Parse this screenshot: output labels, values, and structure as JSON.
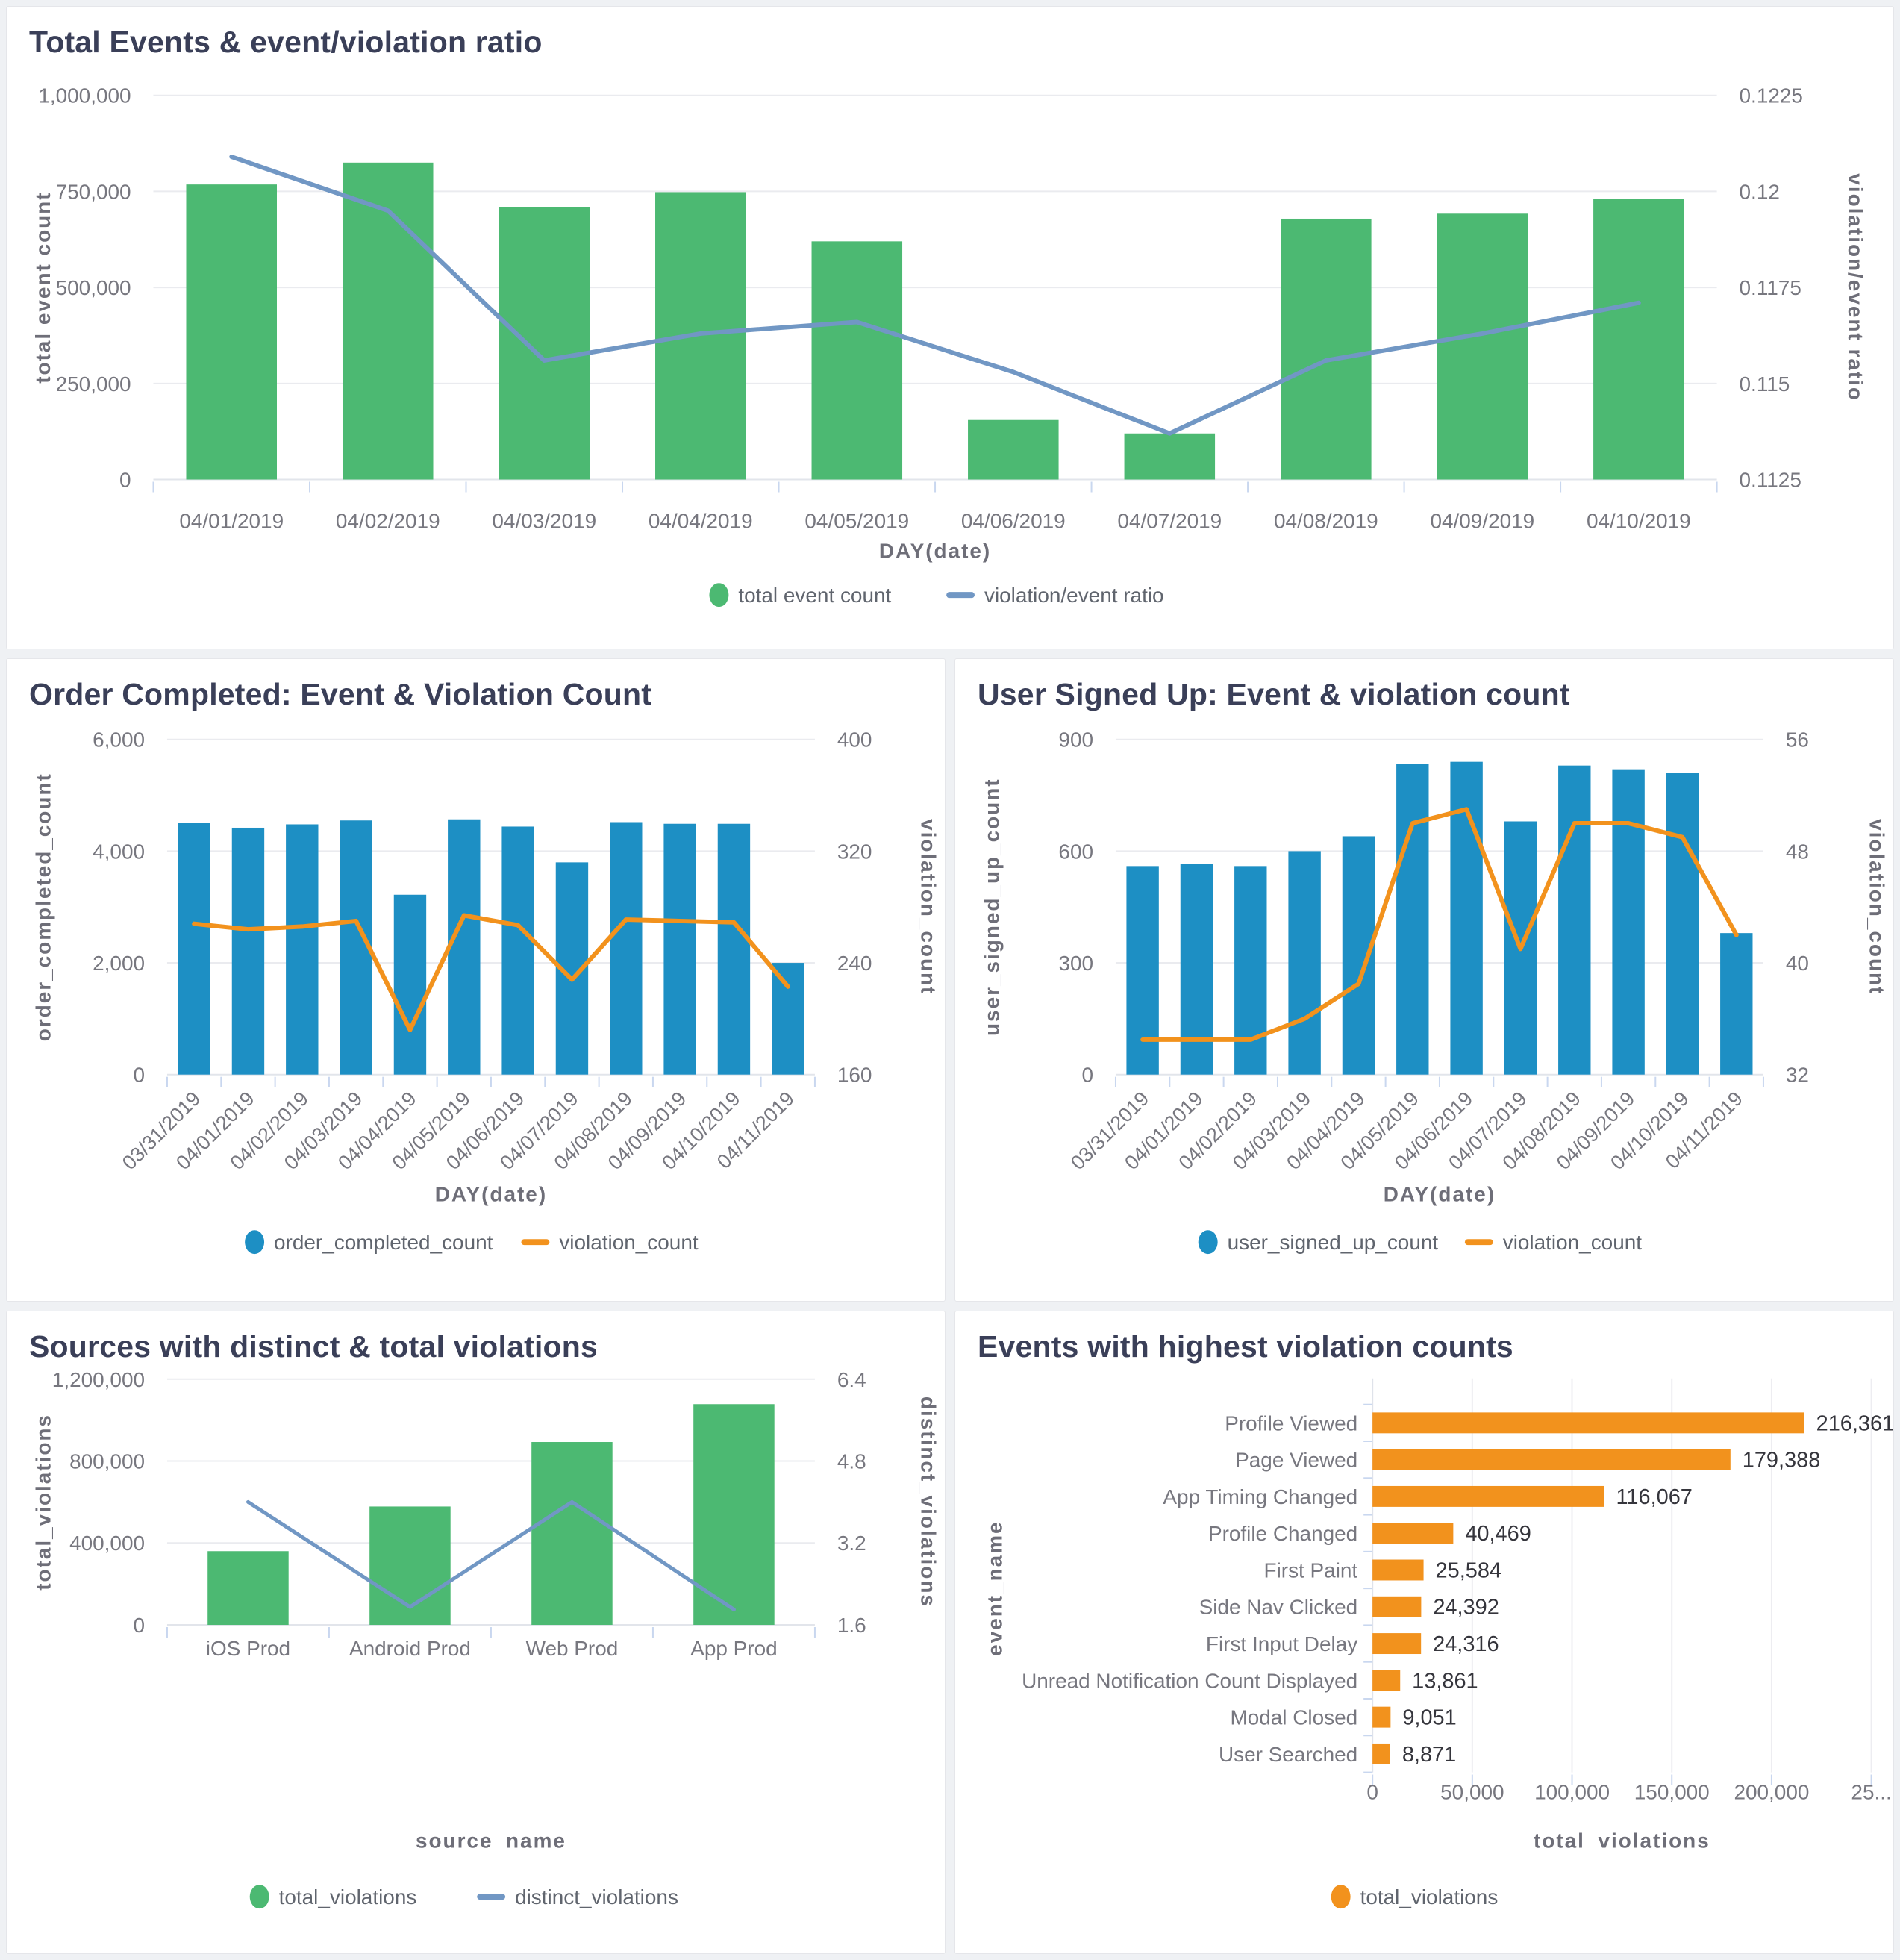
{
  "theme": {
    "page_bg": "#eff1f4",
    "card_bg": "#ffffff",
    "card_border": "#e5e6ea",
    "title_color": "#3a3f58",
    "tick_color": "#77777f",
    "axis_label_color": "#6e6e78",
    "grid_color": "#eaebef",
    "axis_line_color": "#e2e5eb",
    "axis_tick_color": "#c9d7ef",
    "value_label_color": "#35353c",
    "legend_text_color": "#60656e",
    "green": "#4cb972",
    "blue_bar": "#1d8fc4",
    "steel_line": "#7197c4",
    "orange": "#f2921d"
  },
  "chart_data": [
    {
      "id": "total-events",
      "type": "bar-line",
      "title": "Total Events & event/violation ratio",
      "xlabel": "DAY(date)",
      "categories": [
        "04/01/2019",
        "04/02/2019",
        "04/03/2019",
        "04/04/2019",
        "04/05/2019",
        "04/06/2019",
        "04/07/2019",
        "04/08/2019",
        "04/09/2019",
        "04/10/2019"
      ],
      "left_axis": {
        "label": "total event count",
        "min": 0,
        "max": 1000000,
        "ticks": [
          0,
          250000,
          500000,
          750000,
          1000000
        ],
        "tick_labels": [
          "0",
          "250,000",
          "500,000",
          "750,000",
          "1,000,000"
        ]
      },
      "right_axis": {
        "label": "violation/event ratio",
        "min": 0.1125,
        "max": 0.1225,
        "ticks": [
          0.1125,
          0.115,
          0.1175,
          0.12,
          0.1225
        ],
        "tick_labels": [
          "0.1125",
          "0.115",
          "0.1175",
          "0.12",
          "0.1225"
        ]
      },
      "series": [
        {
          "name": "total event count",
          "type": "bar",
          "axis": "left",
          "color": "#4cb972",
          "values": [
            768000,
            825000,
            710000,
            748000,
            620000,
            155000,
            120000,
            679000,
            692000,
            730000
          ]
        },
        {
          "name": "violation/event ratio",
          "type": "line",
          "axis": "right",
          "color": "#7197c4",
          "values": [
            0.1209,
            0.1195,
            0.1156,
            0.1163,
            0.1166,
            0.1153,
            0.1137,
            0.1156,
            0.1163,
            0.1171
          ]
        }
      ]
    },
    {
      "id": "order-completed",
      "type": "bar-line",
      "title": "Order Completed: Event & Violation Count",
      "xlabel": "DAY(date)",
      "categories": [
        "03/31/2019",
        "04/01/2019",
        "04/02/2019",
        "04/03/2019",
        "04/04/2019",
        "04/05/2019",
        "04/06/2019",
        "04/07/2019",
        "04/08/2019",
        "04/09/2019",
        "04/10/2019",
        "04/11/2019"
      ],
      "left_axis": {
        "label": "order_completed_count",
        "min": 0,
        "max": 6000,
        "ticks": [
          0,
          2000,
          4000,
          6000
        ],
        "tick_labels": [
          "0",
          "2,000",
          "4,000",
          "6,000"
        ]
      },
      "right_axis": {
        "label": "violation_count",
        "min": 160,
        "max": 400,
        "ticks": [
          160,
          240,
          320,
          400
        ],
        "tick_labels": [
          "160",
          "240",
          "320",
          "400"
        ]
      },
      "series": [
        {
          "name": "order_completed_count",
          "type": "bar",
          "axis": "left",
          "color": "#1d8fc4",
          "values": [
            4510,
            4420,
            4480,
            4550,
            3220,
            4570,
            4440,
            3800,
            4520,
            4490,
            4490,
            2000
          ]
        },
        {
          "name": "violation_count",
          "type": "line",
          "axis": "right",
          "color": "#f2921d",
          "values": [
            268,
            264,
            266,
            270,
            192,
            274,
            267,
            228,
            271,
            270,
            269,
            223
          ]
        }
      ]
    },
    {
      "id": "user-signed-up",
      "type": "bar-line",
      "title": "User Signed Up: Event & violation count",
      "xlabel": "DAY(date)",
      "categories": [
        "03/31/2019",
        "04/01/2019",
        "04/02/2019",
        "04/03/2019",
        "04/04/2019",
        "04/05/2019",
        "04/06/2019",
        "04/07/2019",
        "04/08/2019",
        "04/09/2019",
        "04/10/2019",
        "04/11/2019"
      ],
      "left_axis": {
        "label": "user_signed_up_count",
        "min": 0,
        "max": 900,
        "ticks": [
          0,
          300,
          600,
          900
        ],
        "tick_labels": [
          "0",
          "300",
          "600",
          "900"
        ]
      },
      "right_axis": {
        "label": "violation_count",
        "min": 32,
        "max": 56,
        "ticks": [
          32,
          40,
          48,
          56
        ],
        "tick_labels": [
          "32",
          "40",
          "48",
          "56"
        ]
      },
      "series": [
        {
          "name": "user_signed_up_count",
          "type": "bar",
          "axis": "left",
          "color": "#1d8fc4",
          "values": [
            560,
            565,
            560,
            600,
            640,
            835,
            840,
            680,
            830,
            820,
            810,
            380
          ]
        },
        {
          "name": "violation_count",
          "type": "line",
          "axis": "right",
          "color": "#f2921d",
          "values": [
            34.5,
            34.5,
            34.5,
            36,
            38.5,
            50,
            51,
            41,
            50,
            50,
            49,
            42
          ]
        }
      ]
    },
    {
      "id": "sources",
      "type": "bar-line",
      "title": "Sources with distinct & total violations",
      "xlabel": "source_name",
      "categories": [
        "iOS Prod",
        "Android Prod",
        "Web Prod",
        "App Prod"
      ],
      "left_axis": {
        "label": "total_violations",
        "min": 0,
        "max": 1200000,
        "ticks": [
          0,
          400000,
          800000,
          1200000
        ],
        "tick_labels": [
          "0",
          "400,000",
          "800,000",
          "1,200,000"
        ]
      },
      "right_axis": {
        "label": "distinct_violations",
        "min": 1.6,
        "max": 6.4,
        "ticks": [
          1.6,
          3.2,
          4.8,
          6.4
        ],
        "tick_labels": [
          "1.6",
          "3.2",
          "4.8",
          "6.4"
        ]
      },
      "series": [
        {
          "name": "total_violations",
          "type": "bar",
          "axis": "left",
          "color": "#4cb972",
          "values": [
            360000,
            578000,
            893000,
            1078000
          ]
        },
        {
          "name": "distinct_violations",
          "type": "line",
          "axis": "right",
          "color": "#7197c4",
          "values": [
            4.0,
            1.95,
            4.0,
            1.9
          ]
        }
      ]
    },
    {
      "id": "top-violations",
      "type": "hbar",
      "title": "Events with highest violation counts",
      "xlabel": "total_violations",
      "ylabel": "event_name",
      "series_name": "total_violations",
      "color": "#f2921d",
      "categories": [
        "Profile Viewed",
        "Page Viewed",
        "App Timing Changed",
        "Profile Changed",
        "First Paint",
        "Side Nav Clicked",
        "First Input Delay",
        "Unread Notification Count Displayed",
        "Modal Closed",
        "User Searched"
      ],
      "values": [
        216361,
        179388,
        116067,
        40469,
        25584,
        24392,
        24316,
        13861,
        9051,
        8871
      ],
      "value_labels": [
        "216,361",
        "179,388",
        "116,067",
        "40,469",
        "25,584",
        "24,392",
        "24,316",
        "13,861",
        "9,051",
        "8,871"
      ],
      "xmax": 250000,
      "x_ticks": {
        "values": [
          0,
          50000,
          100000,
          150000,
          200000,
          250000
        ],
        "labels": [
          "0",
          "50,000",
          "100,000",
          "150,000",
          "200,000",
          "25..."
        ]
      }
    }
  ]
}
